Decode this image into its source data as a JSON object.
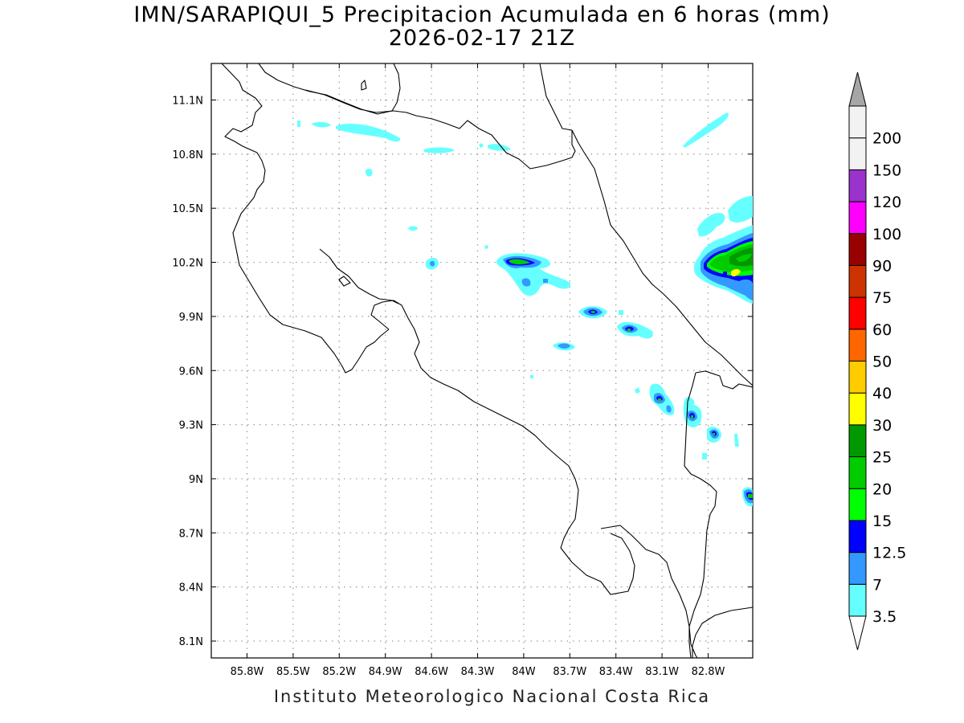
{
  "title_line1": "IMN/SARAPIQUI_5 Precipitacion Acumulada en 6 horas (mm)",
  "title_line2": "2026-02-17 21Z",
  "footer": "Instituto Meteorologico Nacional Costa Rica",
  "map": {
    "lon_ticks": [
      "85.8W",
      "85.5W",
      "85.2W",
      "84.9W",
      "84.6W",
      "84.3W",
      "84W",
      "83.7W",
      "83.4W",
      "83.1W",
      "82.8W"
    ],
    "lat_ticks": [
      "11.1N",
      "10.8N",
      "10.5N",
      "10.2N",
      "9.9N",
      "9.6N",
      "9.3N",
      "9N",
      "8.7N",
      "8.4N",
      "8.1N"
    ]
  },
  "colorbar": {
    "levels": [
      "3.5",
      "7",
      "12.5",
      "15",
      "20",
      "25",
      "30",
      "40",
      "50",
      "60",
      "75",
      "90",
      "100",
      "120",
      "150",
      "200"
    ],
    "colors": [
      "#66ffff",
      "#3399ff",
      "#0000ff",
      "#00ff00",
      "#00cc00",
      "#009900",
      "#ffff00",
      "#ffcc00",
      "#ff6600",
      "#ff0000",
      "#cc3300",
      "#990000",
      "#ff00ff",
      "#9933cc",
      "#f2f2f2",
      "#a6a6a6"
    ]
  }
}
